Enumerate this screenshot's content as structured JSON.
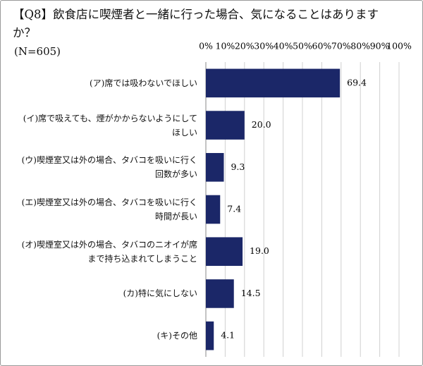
{
  "chart_data": {
    "type": "barh",
    "title": "【Q8】飲食店に喫煙者と一緒に行った場合、気になることはありますか？",
    "subtitle": "(N=605)",
    "categories": [
      "(ア)席では吸わないでほしい",
      "(イ)席で吸えても、煙がかからないようにしてほしい",
      "(ウ)喫煙室又は外の場合、タバコを吸いに行く回数が多い",
      "(エ)喫煙室又は外の場合、タバコを吸いに行く時間が長い",
      "(オ)喫煙室又は外の場合、タバコのニオイが席まで持ち込まれてしまうこと",
      "(カ)特に気にしない",
      "(キ)その他"
    ],
    "values": [
      69.4,
      20,
      9.3,
      7.4,
      19,
      14.5,
      4.1
    ],
    "value_labels": [
      "69.4",
      "20.0",
      "9.3",
      "7.4",
      "19.0",
      "14.5",
      "4.1"
    ],
    "color": "#1b2768",
    "xlim": [
      0,
      100
    ],
    "xticks": [
      {
        "value": 0,
        "label": "0%"
      },
      {
        "value": 10,
        "label": "10%"
      },
      {
        "value": 20,
        "label": "20%"
      },
      {
        "value": 30,
        "label": "30%"
      },
      {
        "value": 40,
        "label": "40%"
      },
      {
        "value": 50,
        "label": "50%"
      },
      {
        "value": 60,
        "label": "60%"
      },
      {
        "value": 70,
        "label": "70%"
      },
      {
        "value": 80,
        "label": "80%"
      },
      {
        "value": 90,
        "label": "90%"
      },
      {
        "value": 100,
        "label": "100%"
      }
    ],
    "grid": true
  }
}
